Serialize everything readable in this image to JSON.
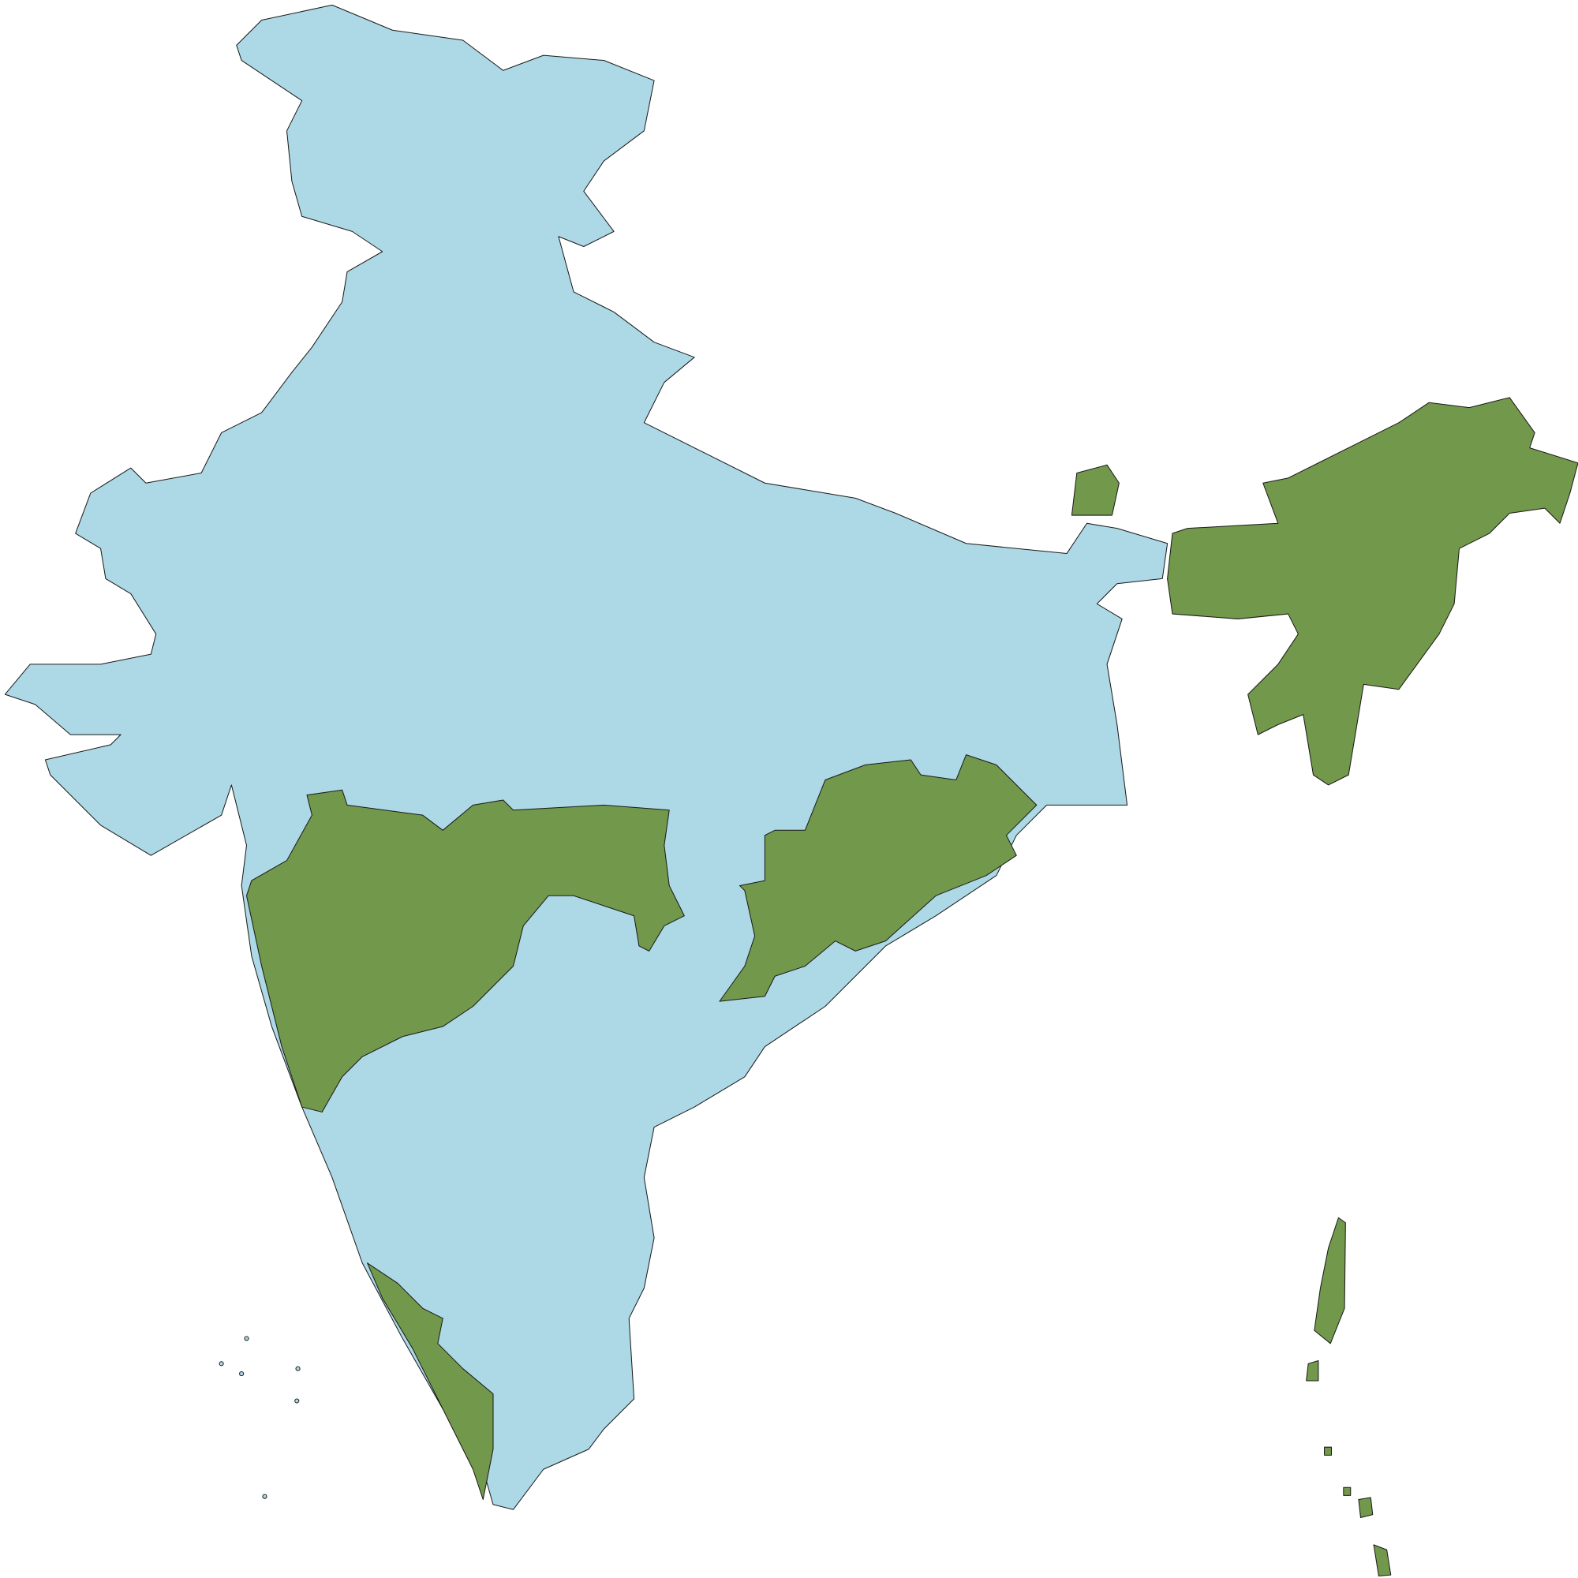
{
  "map": {
    "colors": {
      "base": "#ADD8E6",
      "highlight": "#72984B",
      "border": "#1a1a1a",
      "background": "#FFFFFF"
    }
  }
}
